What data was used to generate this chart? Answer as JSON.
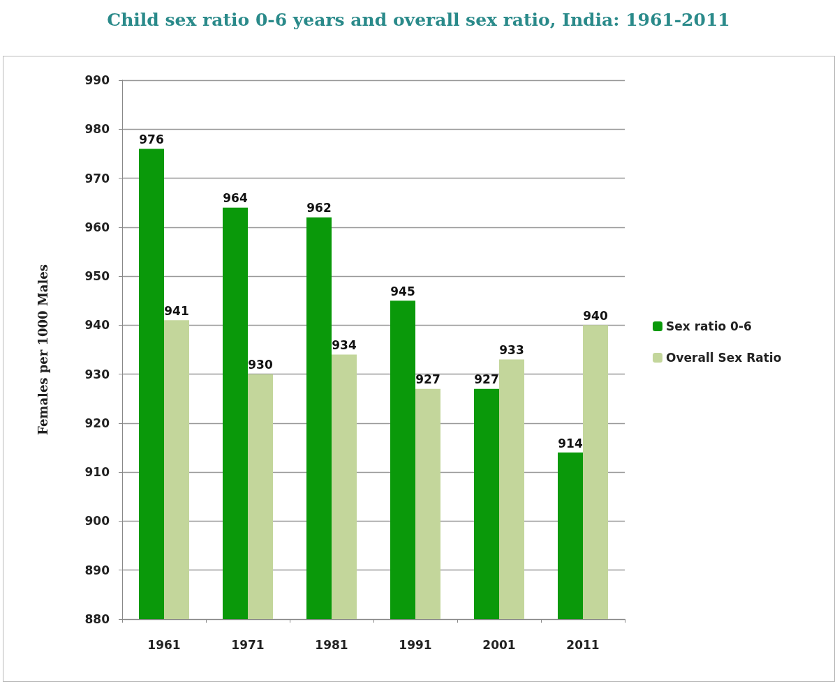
{
  "chart_data": {
    "type": "bar",
    "title": "Child sex ratio 0-6 years and overall sex ratio, India: 1961-2011",
    "ylabel": "Females per 1000 Males",
    "categories": [
      "1961",
      "1971",
      "1981",
      "1991",
      "2001",
      "2011"
    ],
    "series": [
      {
        "name": "Sex ratio 0-6",
        "color": "#0a990a",
        "values": [
          976,
          964,
          962,
          945,
          927,
          914
        ]
      },
      {
        "name": "Overall Sex Ratio",
        "color": "#c3d69b",
        "values": [
          941,
          930,
          934,
          927,
          933,
          940
        ]
      }
    ],
    "ylim": [
      880,
      990
    ],
    "yticks": [
      880,
      890,
      900,
      910,
      920,
      930,
      940,
      950,
      960,
      970,
      980,
      990
    ],
    "grid": "y",
    "legend": "right",
    "data_labels": true
  }
}
